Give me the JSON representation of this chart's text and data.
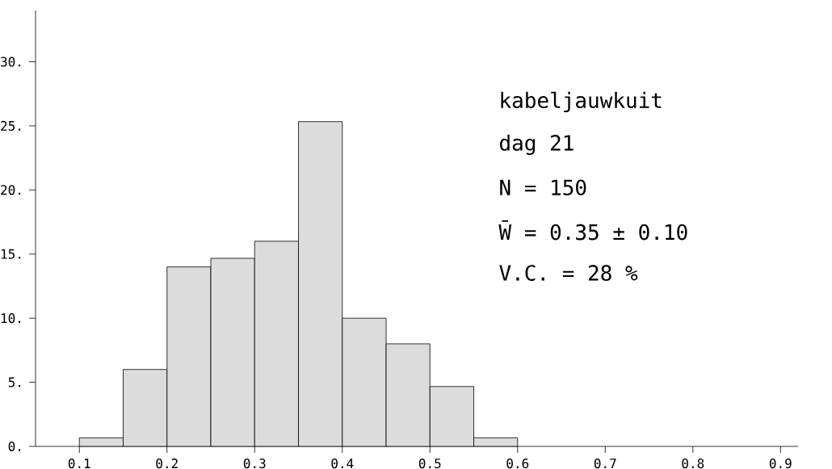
{
  "chart_data": {
    "type": "histogram",
    "bins": [
      0.1,
      0.15,
      0.2,
      0.25,
      0.3,
      0.35,
      0.4,
      0.45,
      0.5,
      0.55,
      0.6
    ],
    "values": [
      0.67,
      6,
      14,
      14.67,
      16,
      25.33,
      10,
      8,
      4.67,
      0.67
    ],
    "color": "#dcdcdc",
    "xlim": [
      0.05,
      0.92
    ],
    "ylim": [
      0,
      34
    ],
    "xticks": [
      {
        "value": 0.1,
        "label": "0.1"
      },
      {
        "value": 0.2,
        "label": "0.2"
      },
      {
        "value": 0.3,
        "label": "0.3"
      },
      {
        "value": 0.4,
        "label": "0.4"
      },
      {
        "value": 0.5,
        "label": "0.5"
      },
      {
        "value": 0.6,
        "label": "0.6"
      },
      {
        "value": 0.7,
        "label": "0.7"
      },
      {
        "value": 0.8,
        "label": "0.8"
      },
      {
        "value": 0.9,
        "label": "0.9"
      }
    ],
    "yticks": [
      {
        "value": 0,
        "label": "0."
      },
      {
        "value": 5,
        "label": "5."
      },
      {
        "value": 10,
        "label": "10."
      },
      {
        "value": 15,
        "label": "15."
      },
      {
        "value": 20,
        "label": "20."
      },
      {
        "value": 25,
        "label": "25."
      },
      {
        "value": 30,
        "label": "30."
      }
    ],
    "annotations": [
      "kabeljauwkuit",
      "dag 21",
      "N = 150",
      "W̄ = 0.35 ± 0.10",
      "V.C. = 28 %"
    ]
  }
}
